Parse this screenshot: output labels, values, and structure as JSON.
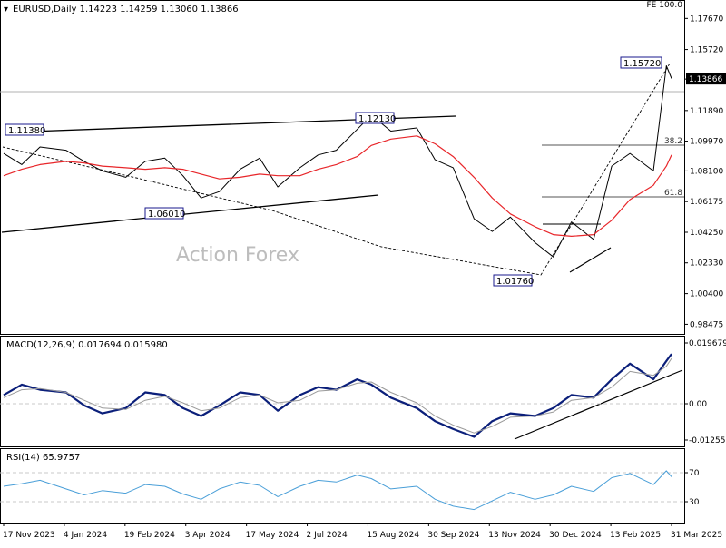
{
  "header": {
    "symbol_text": "EURUSD,Daily  1.14223 1.14259 1.13060 1.13866",
    "fe_label": "FE 100.0",
    "watermark": "Action Forex"
  },
  "chart_data": [
    {
      "type": "line",
      "panel": "price",
      "x": [
        "2023-11-17",
        "2023-12-01",
        "2023-12-15",
        "2024-01-04",
        "2024-01-18",
        "2024-02-01",
        "2024-02-19",
        "2024-03-05",
        "2024-03-20",
        "2024-04-03",
        "2024-04-17",
        "2024-05-01",
        "2024-05-17",
        "2024-06-01",
        "2024-06-15",
        "2024-07-02",
        "2024-07-16",
        "2024-07-30",
        "2024-08-15",
        "2024-08-26",
        "2024-09-10",
        "2024-09-30",
        "2024-10-14",
        "2024-10-28",
        "2024-11-13",
        "2024-11-27",
        "2024-12-11",
        "2024-12-30",
        "2025-01-13",
        "2025-01-27",
        "2025-02-13",
        "2025-02-27",
        "2025-03-13",
        "2025-03-31",
        "2025-04-10",
        "2025-04-14"
      ],
      "series": [
        {
          "values": [
            1.092,
            1.085,
            1.096,
            1.094,
            1.087,
            1.081,
            1.077,
            1.087,
            1.089,
            1.078,
            1.064,
            1.068,
            1.082,
            1.089,
            1.071,
            1.083,
            1.091,
            1.094,
            1.107,
            1.116,
            1.106,
            1.108,
            1.088,
            1.083,
            1.051,
            1.043,
            1.052,
            1.036,
            1.027,
            1.049,
            1.038,
            1.084,
            1.092,
            1.081,
            1.147,
            1.139
          ]
        },
        {
          "values": [
            1.078,
            1.082,
            1.085,
            1.087,
            1.086,
            1.084,
            1.083,
            1.082,
            1.083,
            1.082,
            1.079,
            1.076,
            1.077,
            1.079,
            1.078,
            1.078,
            1.082,
            1.085,
            1.09,
            1.097,
            1.101,
            1.103,
            1.098,
            1.09,
            1.077,
            1.064,
            1.054,
            1.046,
            1.041,
            1.04,
            1.041,
            1.05,
            1.063,
            1.072,
            1.084,
            1.091
          ]
        }
      ],
      "ylim": [
        0.981,
        1.186
      ],
      "yticks": [
        "1.17670",
        "1.15720",
        "1.13866",
        "1.11890",
        "1.09970",
        "1.08100",
        "1.06175",
        "1.04250",
        "1.02330",
        "1.00400",
        "0.98475"
      ],
      "annotations": [
        "1.11380",
        "1.12130",
        "1.06010",
        "1.01760",
        "1.15720",
        "38.2",
        "61.8"
      ],
      "current_price": "1.13866",
      "grid": false
    },
    {
      "type": "line",
      "panel": "macd",
      "title": "MACD(12,26,9) 0.017694 0.015980",
      "x": [
        "2023-11-17",
        "2023-12-01",
        "2023-12-15",
        "2024-01-04",
        "2024-01-18",
        "2024-02-01",
        "2024-02-19",
        "2024-03-05",
        "2024-03-20",
        "2024-04-03",
        "2024-04-17",
        "2024-05-01",
        "2024-05-17",
        "2024-06-01",
        "2024-06-15",
        "2024-07-02",
        "2024-07-16",
        "2024-07-30",
        "2024-08-15",
        "2024-08-26",
        "2024-09-10",
        "2024-09-30",
        "2024-10-14",
        "2024-10-28",
        "2024-11-13",
        "2024-11-27",
        "2024-12-11",
        "2024-12-30",
        "2025-01-13",
        "2025-01-27",
        "2025-02-13",
        "2025-02-27",
        "2025-03-13",
        "2025-03-31",
        "2025-04-10",
        "2025-04-14"
      ],
      "series": [
        {
          "values": [
            0.002,
            0.006,
            0.004,
            0.003,
            -0.002,
            -0.005,
            -0.003,
            0.003,
            0.002,
            -0.003,
            -0.006,
            -0.002,
            0.003,
            0.002,
            -0.004,
            0.002,
            0.005,
            0.004,
            0.008,
            0.006,
            0.001,
            -0.003,
            -0.008,
            -0.011,
            -0.014,
            -0.008,
            -0.005,
            -0.006,
            -0.003,
            0.002,
            0.001,
            0.008,
            0.014,
            0.008,
            0.015,
            0.0177
          ]
        },
        {
          "values": [
            0.001,
            0.004,
            0.0045,
            0.003,
            0.0,
            -0.003,
            -0.0035,
            0.0,
            0.0015,
            -0.001,
            -0.004,
            -0.003,
            0.001,
            0.002,
            -0.001,
            0.0,
            0.0035,
            0.004,
            0.0065,
            0.007,
            0.003,
            -0.001,
            -0.006,
            -0.0095,
            -0.0125,
            -0.01,
            -0.0065,
            -0.006,
            -0.0045,
            0.0,
            0.001,
            0.005,
            0.011,
            0.0095,
            0.013,
            0.016
          ]
        }
      ],
      "ylim": [
        -0.0152,
        0.0219
      ],
      "yticks": [
        "0.019679",
        "0.00",
        "-0.012552"
      ],
      "grid": false
    },
    {
      "type": "line",
      "panel": "rsi",
      "title": "RSI(14) 65.9757",
      "x": [
        "2023-11-17",
        "2023-12-01",
        "2023-12-15",
        "2024-01-04",
        "2024-01-18",
        "2024-02-01",
        "2024-02-19",
        "2024-03-05",
        "2024-03-20",
        "2024-04-03",
        "2024-04-17",
        "2024-05-01",
        "2024-05-17",
        "2024-06-01",
        "2024-06-15",
        "2024-07-02",
        "2024-07-16",
        "2024-07-30",
        "2024-08-15",
        "2024-08-26",
        "2024-09-10",
        "2024-09-30",
        "2024-10-14",
        "2024-10-28",
        "2024-11-13",
        "2024-11-27",
        "2024-12-11",
        "2024-12-30",
        "2025-01-13",
        "2025-01-27",
        "2025-02-13",
        "2025-02-27",
        "2025-03-13",
        "2025-03-31",
        "2025-04-10",
        "2025-04-14"
      ],
      "series": [
        {
          "values": [
            55,
            58,
            62,
            52,
            45,
            50,
            47,
            57,
            55,
            46,
            40,
            52,
            60,
            56,
            43,
            55,
            62,
            60,
            68,
            64,
            52,
            55,
            40,
            32,
            28,
            38,
            48,
            40,
            45,
            55,
            49,
            65,
            70,
            57,
            73,
            66
          ]
        }
      ],
      "ylim": [
        15,
        95
      ],
      "yticks": [
        "70",
        "30"
      ],
      "grid": false
    }
  ],
  "x_axis": {
    "tick_labels": [
      "17 Nov 2023",
      "4 Jan 2024",
      "19 Feb 2024",
      "3 Apr 2024",
      "17 May 2024",
      "2 Jul 2024",
      "15 Aug 2024",
      "30 Sep 2024",
      "13 Nov 2024",
      "30 Dec 2024",
      "13 Feb 2025",
      "31 Mar 2025"
    ]
  },
  "colors": {
    "price": "#000000",
    "sma": "#e8262a",
    "macd": "#0b1f7a",
    "signal": "#9a9a9a",
    "rsi": "#4a9fd8",
    "fibo": "#555555",
    "watermark": "#bdbdbd",
    "box_border": "#1a1a8c"
  }
}
